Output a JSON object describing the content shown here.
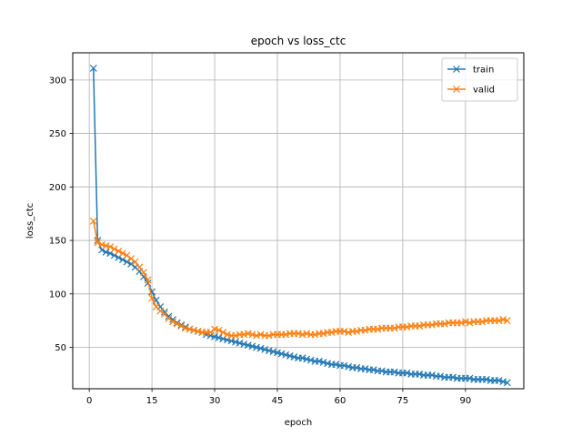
{
  "chart_data": {
    "type": "line",
    "title": "epoch vs loss_ctc",
    "xlabel": "epoch",
    "ylabel": "loss_ctc",
    "xlim": [
      -3.95,
      103.95
    ],
    "ylim": [
      11.3,
      325.4
    ],
    "xticks": [
      0,
      15,
      30,
      45,
      60,
      75,
      90
    ],
    "yticks": [
      50,
      100,
      150,
      200,
      250,
      300
    ],
    "grid": true,
    "legend": "top-right",
    "marker": "x",
    "series": [
      {
        "name": "train",
        "color": "#1f77b4",
        "x": [
          1,
          2,
          3,
          4,
          5,
          6,
          7,
          8,
          9,
          10,
          11,
          12,
          13,
          14,
          15,
          16,
          17,
          18,
          19,
          20,
          21,
          22,
          23,
          24,
          25,
          26,
          27,
          28,
          29,
          30,
          31,
          32,
          33,
          34,
          35,
          36,
          37,
          38,
          39,
          40,
          41,
          42,
          43,
          44,
          45,
          46,
          47,
          48,
          49,
          50,
          51,
          52,
          53,
          54,
          55,
          56,
          57,
          58,
          59,
          60,
          61,
          62,
          63,
          64,
          65,
          66,
          67,
          68,
          69,
          70,
          71,
          72,
          73,
          74,
          75,
          76,
          77,
          78,
          79,
          80,
          81,
          82,
          83,
          84,
          85,
          86,
          87,
          88,
          89,
          90,
          91,
          92,
          93,
          94,
          95,
          96,
          97,
          98,
          99,
          100
        ],
        "y": [
          311,
          150,
          141,
          139,
          138,
          136,
          134,
          132,
          130,
          128,
          125,
          121,
          116,
          110,
          102,
          94,
          88,
          83,
          79,
          76,
          73,
          71,
          69,
          67,
          66,
          65,
          64,
          62,
          61,
          60,
          59,
          58,
          57,
          56,
          55,
          54,
          53,
          52,
          51,
          50,
          49,
          48,
          47,
          46,
          45,
          44,
          43,
          42,
          41,
          40,
          40,
          39,
          38,
          37,
          37,
          36,
          35,
          34,
          34,
          33,
          33,
          32,
          31,
          31,
          30,
          30,
          29,
          29,
          28,
          28,
          27,
          27,
          27,
          26,
          26,
          26,
          25,
          25,
          25,
          24,
          24,
          24,
          23,
          23,
          22,
          22,
          22,
          21,
          21,
          21,
          21,
          20,
          20,
          20,
          20,
          19,
          19,
          19,
          18,
          17
        ]
      },
      {
        "name": "valid",
        "color": "#ff7f0e",
        "x": [
          1,
          2,
          3,
          4,
          5,
          6,
          7,
          8,
          9,
          10,
          11,
          12,
          13,
          14,
          15,
          16,
          17,
          18,
          19,
          20,
          21,
          22,
          23,
          24,
          25,
          26,
          27,
          28,
          29,
          30,
          31,
          32,
          33,
          34,
          35,
          36,
          37,
          38,
          39,
          40,
          41,
          42,
          43,
          44,
          45,
          46,
          47,
          48,
          49,
          50,
          51,
          52,
          53,
          54,
          55,
          56,
          57,
          58,
          59,
          60,
          61,
          62,
          63,
          64,
          65,
          66,
          67,
          68,
          69,
          70,
          71,
          72,
          73,
          74,
          75,
          76,
          77,
          78,
          79,
          80,
          81,
          82,
          83,
          84,
          85,
          86,
          87,
          88,
          89,
          90,
          91,
          92,
          93,
          94,
          95,
          96,
          97,
          98,
          99,
          100
        ],
        "y": [
          168,
          148,
          146,
          145,
          144,
          142,
          140,
          138,
          136,
          133,
          130,
          125,
          120,
          113,
          96,
          88,
          84,
          81,
          77,
          74,
          72,
          70,
          68,
          67,
          66,
          65,
          64,
          64,
          64,
          67,
          66,
          64,
          62,
          61,
          61,
          62,
          62,
          63,
          62,
          61,
          62,
          61,
          61,
          62,
          62,
          62,
          62,
          63,
          63,
          63,
          62,
          63,
          62,
          62,
          63,
          63,
          64,
          64,
          65,
          65,
          65,
          64,
          65,
          65,
          66,
          66,
          67,
          67,
          67,
          68,
          68,
          68,
          68,
          69,
          69,
          69,
          70,
          70,
          70,
          71,
          71,
          71,
          72,
          72,
          72,
          73,
          73,
          73,
          73,
          74,
          73,
          74,
          74,
          74,
          75,
          75,
          75,
          75,
          76,
          75
        ]
      }
    ]
  }
}
